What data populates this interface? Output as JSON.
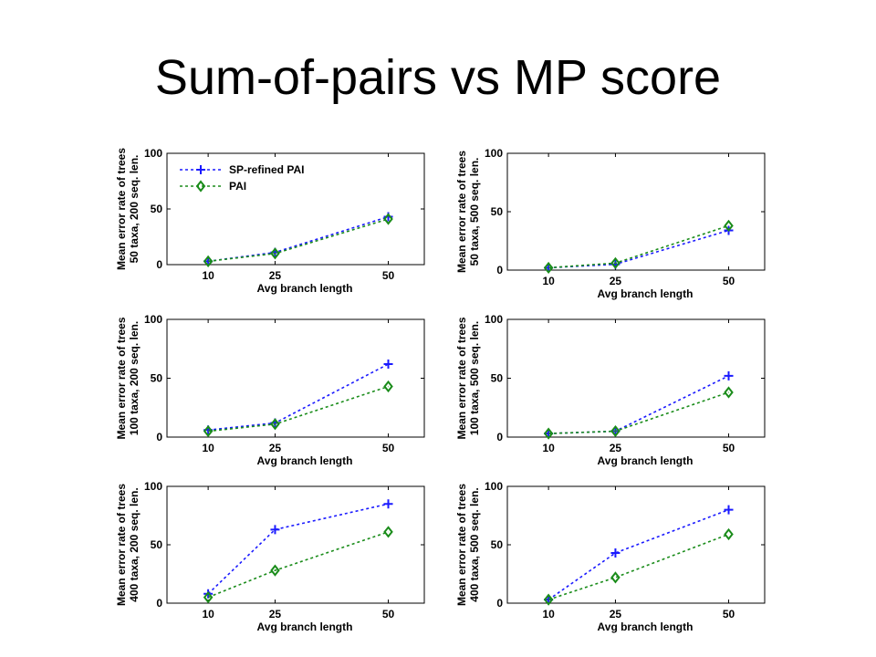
{
  "slide": {
    "title": "Sum-of-pairs vs MP score"
  },
  "colors": {
    "sp_refined_pai": "#1a1aff",
    "pai": "#1a8c1a"
  },
  "chart_data": [
    {
      "type": "line",
      "x": [
        10,
        25,
        50
      ],
      "xlabel": "Avg branch length",
      "ylabel": "Mean error rate of trees 50 taxa, 200 seq. len.",
      "ylim": [
        0,
        100
      ],
      "yticks": [
        0,
        50,
        100
      ],
      "legend": "top-left",
      "series": [
        {
          "name": "SP-refined PAI",
          "marker": "plus",
          "values": [
            3,
            11,
            43
          ]
        },
        {
          "name": "PAI",
          "marker": "diamond",
          "values": [
            3,
            10,
            41
          ]
        }
      ]
    },
    {
      "type": "line",
      "x": [
        10,
        25,
        50
      ],
      "xlabel": "Avg branch length",
      "ylabel": "Mean error rate of trees 50 taxa, 500 seq. len.",
      "ylim": [
        0,
        100
      ],
      "yticks": [
        0,
        50,
        100
      ],
      "series": [
        {
          "name": "SP-refined PAI",
          "marker": "plus",
          "values": [
            2,
            5,
            34
          ]
        },
        {
          "name": "PAI",
          "marker": "diamond",
          "values": [
            2,
            6,
            38
          ]
        }
      ]
    },
    {
      "type": "line",
      "x": [
        10,
        25,
        50
      ],
      "xlabel": "Avg branch length",
      "ylabel": "Mean error rate of trees 100 taxa, 200 seq. len.",
      "ylim": [
        0,
        100
      ],
      "yticks": [
        0,
        50,
        100
      ],
      "series": [
        {
          "name": "SP-refined PAI",
          "marker": "plus",
          "values": [
            6,
            12,
            62
          ]
        },
        {
          "name": "PAI",
          "marker": "diamond",
          "values": [
            5,
            11,
            43
          ]
        }
      ]
    },
    {
      "type": "line",
      "x": [
        10,
        25,
        50
      ],
      "xlabel": "Avg branch length",
      "ylabel": "Mean error rate of trees 100 taxa, 500 seq. len.",
      "ylim": [
        0,
        100
      ],
      "yticks": [
        0,
        50,
        100
      ],
      "series": [
        {
          "name": "SP-refined PAI",
          "marker": "plus",
          "values": [
            3,
            5,
            52
          ]
        },
        {
          "name": "PAI",
          "marker": "diamond",
          "values": [
            3,
            5,
            38
          ]
        }
      ]
    },
    {
      "type": "line",
      "x": [
        10,
        25,
        50
      ],
      "xlabel": "Avg branch length",
      "ylabel": "Mean error rate of trees 400 taxa, 200 seq. len.",
      "ylim": [
        0,
        100
      ],
      "yticks": [
        0,
        50,
        100
      ],
      "series": [
        {
          "name": "SP-refined PAI",
          "marker": "plus",
          "values": [
            8,
            63,
            85
          ]
        },
        {
          "name": "PAI",
          "marker": "diamond",
          "values": [
            5,
            28,
            61
          ]
        }
      ]
    },
    {
      "type": "line",
      "x": [
        10,
        25,
        50
      ],
      "xlabel": "Avg branch length",
      "ylabel": "Mean error rate of trees 400 taxa, 500 seq. len.",
      "ylim": [
        0,
        100
      ],
      "yticks": [
        0,
        50,
        100
      ],
      "series": [
        {
          "name": "SP-refined PAI",
          "marker": "plus",
          "values": [
            3,
            43,
            80
          ]
        },
        {
          "name": "PAI",
          "marker": "diamond",
          "values": [
            3,
            22,
            59
          ]
        }
      ]
    }
  ]
}
